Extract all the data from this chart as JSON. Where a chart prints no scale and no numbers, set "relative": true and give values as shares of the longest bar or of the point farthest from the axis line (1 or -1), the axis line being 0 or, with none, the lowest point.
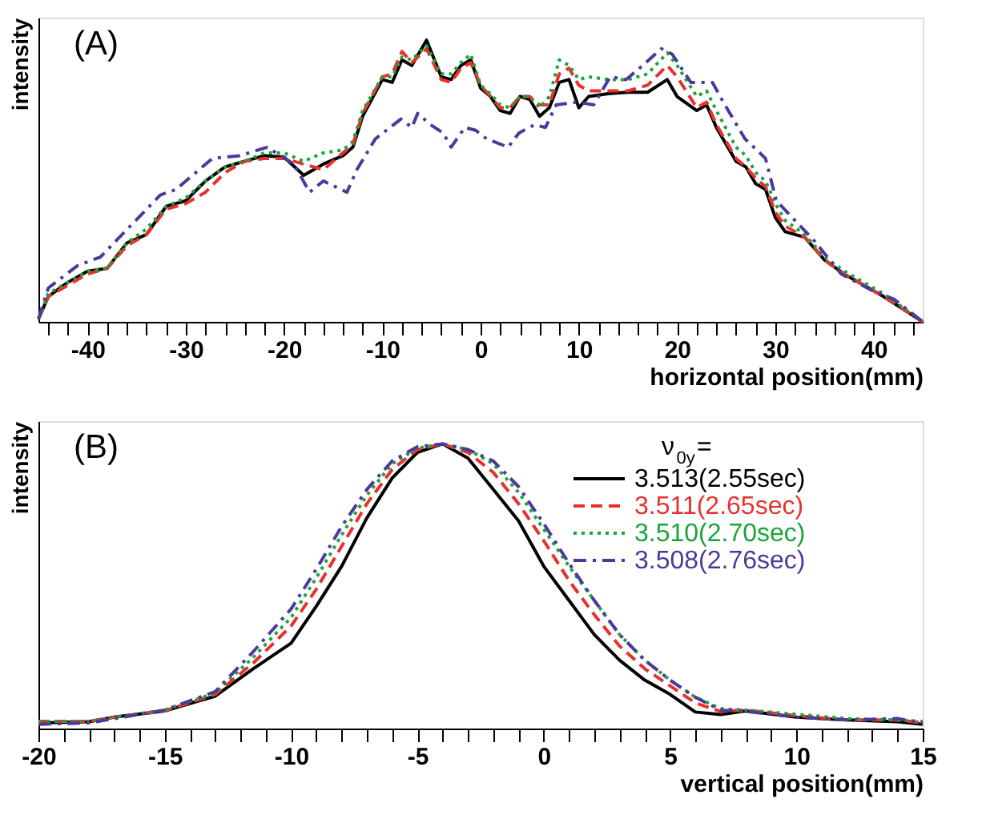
{
  "chart_data": [
    {
      "type": "line",
      "relative": true,
      "xlabel": "horizontal position(mm)",
      "ylabel": "intensity",
      "annotations": [
        "(A)"
      ],
      "xlim": [
        -45,
        45
      ],
      "xticks": [
        {
          "value": -44,
          "label": null
        },
        {
          "value": -42,
          "label": null
        },
        -40,
        {
          "value": -38,
          "label": null
        },
        {
          "value": -36,
          "label": null
        },
        {
          "value": -34,
          "label": null
        },
        {
          "value": -32,
          "label": null
        },
        -30,
        {
          "value": -28,
          "label": null
        },
        {
          "value": -26,
          "label": null
        },
        {
          "value": -24,
          "label": null
        },
        {
          "value": -22,
          "label": null
        },
        -20,
        {
          "value": -18,
          "label": null
        },
        {
          "value": -16,
          "label": null
        },
        {
          "value": -14,
          "label": null
        },
        {
          "value": -12,
          "label": null
        },
        -10,
        {
          "value": -8,
          "label": null
        },
        {
          "value": -6,
          "label": null
        },
        {
          "value": -4,
          "label": null
        },
        {
          "value": -2,
          "label": null
        },
        0,
        {
          "value": 2,
          "label": null
        },
        {
          "value": 4,
          "label": null
        },
        {
          "value": 6,
          "label": null
        },
        {
          "value": 8,
          "label": null
        },
        10,
        {
          "value": 12,
          "label": null
        },
        {
          "value": 14,
          "label": null
        },
        {
          "value": 16,
          "label": null
        },
        {
          "value": 18,
          "label": null
        },
        20,
        {
          "value": 22,
          "label": null
        },
        {
          "value": 24,
          "label": null
        },
        {
          "value": 26,
          "label": null
        },
        {
          "value": 28,
          "label": null
        },
        30,
        {
          "value": 32,
          "label": null
        },
        {
          "value": 34,
          "label": null
        },
        {
          "value": 36,
          "label": null
        },
        {
          "value": 38,
          "label": null
        },
        40,
        {
          "value": 42,
          "label": null
        },
        {
          "value": 44,
          "label": null
        }
      ],
      "x": [
        -45,
        -44,
        -42,
        -40,
        -38,
        -36,
        -34,
        -32,
        -30,
        -28,
        -26,
        -24,
        -22,
        -20,
        -18,
        -16,
        -14,
        -13,
        -12,
        -10,
        -9,
        -8,
        -7,
        -5.5,
        -4,
        -3,
        -2,
        -1,
        0,
        1,
        2,
        3,
        4,
        5,
        6,
        7,
        8,
        9,
        10,
        11,
        13,
        15,
        17,
        19,
        20,
        22,
        23,
        24,
        26,
        27,
        28,
        29,
        30,
        31,
        33,
        35,
        37,
        39,
        41,
        43,
        45
      ],
      "series": [
        {
          "color": "#000000",
          "line_style": "solid",
          "values": [
            0.01,
            0.09,
            0.14,
            0.18,
            0.19,
            0.28,
            0.31,
            0.41,
            0.43,
            0.5,
            0.55,
            0.57,
            0.59,
            0.585,
            0.52,
            0.56,
            0.59,
            0.62,
            0.73,
            0.86,
            0.85,
            0.93,
            0.91,
            1.0,
            0.87,
            0.86,
            0.91,
            0.93,
            0.83,
            0.8,
            0.75,
            0.74,
            0.8,
            0.79,
            0.73,
            0.76,
            0.85,
            0.86,
            0.76,
            0.8,
            0.81,
            0.815,
            0.815,
            0.86,
            0.8,
            0.75,
            0.77,
            0.69,
            0.57,
            0.55,
            0.49,
            0.47,
            0.37,
            0.32,
            0.3,
            0.22,
            0.17,
            0.13,
            0.09,
            0.045,
            0.0
          ]
        },
        {
          "color": "#e8312f",
          "line_style": "dashed",
          "values": [
            0.01,
            0.09,
            0.13,
            0.17,
            0.19,
            0.27,
            0.31,
            0.4,
            0.42,
            0.46,
            0.53,
            0.57,
            0.58,
            0.58,
            0.56,
            0.54,
            0.6,
            0.63,
            0.74,
            0.87,
            0.88,
            0.96,
            0.92,
            0.97,
            0.86,
            0.85,
            0.9,
            0.92,
            0.84,
            0.8,
            0.76,
            0.76,
            0.8,
            0.8,
            0.77,
            0.77,
            0.88,
            0.9,
            0.84,
            0.82,
            0.82,
            0.82,
            0.84,
            0.91,
            0.87,
            0.76,
            0.78,
            0.7,
            0.58,
            0.55,
            0.51,
            0.48,
            0.39,
            0.34,
            0.3,
            0.22,
            0.17,
            0.13,
            0.09,
            0.045,
            0.0
          ]
        },
        {
          "color": "#1aa53a",
          "line_style": "dotted",
          "values": [
            0.01,
            0.1,
            0.14,
            0.18,
            0.19,
            0.28,
            0.33,
            0.41,
            0.44,
            0.5,
            0.55,
            0.57,
            0.6,
            0.6,
            0.57,
            0.6,
            0.61,
            0.64,
            0.75,
            0.87,
            0.87,
            0.94,
            0.93,
            0.98,
            0.88,
            0.88,
            0.92,
            0.95,
            0.84,
            0.81,
            0.77,
            0.76,
            0.8,
            0.8,
            0.76,
            0.8,
            0.93,
            0.91,
            0.86,
            0.87,
            0.86,
            0.86,
            0.88,
            0.955,
            0.91,
            0.8,
            0.82,
            0.75,
            0.62,
            0.59,
            0.53,
            0.5,
            0.42,
            0.36,
            0.31,
            0.23,
            0.18,
            0.14,
            0.1,
            0.05,
            0.0
          ]
        },
        {
          "color": "#4b3a9b",
          "line_style": "dashdot",
          "x": [
            -45,
            -44,
            -41,
            -38.7,
            -36.2,
            -32.6,
            -31,
            -27.3,
            -24.5,
            -21.7,
            -19,
            -17.4,
            -16,
            -13.6,
            -12.6,
            -10.7,
            -8.1,
            -7,
            -6.4,
            -5.1,
            -3.8,
            -3,
            -1.6,
            -0.5,
            0.6,
            2.8,
            3.9,
            5.5,
            6.6,
            7.7,
            9.9,
            11.5,
            13.2,
            14.8,
            16.5,
            18.4,
            19.5,
            21.4,
            23.6,
            24.7,
            26.9,
            29,
            30.1,
            32,
            33.9,
            36.7,
            39.9,
            42.1,
            45
          ],
          "values": [
            0.01,
            0.12,
            0.2,
            0.23,
            0.32,
            0.45,
            0.47,
            0.58,
            0.59,
            0.62,
            0.56,
            0.46,
            0.5,
            0.46,
            0.54,
            0.65,
            0.72,
            0.69,
            0.74,
            0.7,
            0.67,
            0.62,
            0.69,
            0.68,
            0.65,
            0.62,
            0.67,
            0.7,
            0.69,
            0.77,
            0.78,
            0.77,
            0.87,
            0.86,
            0.91,
            0.97,
            0.95,
            0.85,
            0.85,
            0.78,
            0.65,
            0.58,
            0.43,
            0.36,
            0.29,
            0.17,
            0.11,
            0.08,
            0.0
          ]
        }
      ]
    },
    {
      "type": "line",
      "relative": true,
      "xlabel": "vertical position(mm)",
      "ylabel": "intensity",
      "annotations": [
        "(B)"
      ],
      "legend": "top right",
      "legend_title": "ν$_{0y}$=",
      "xlim": [
        -20,
        15
      ],
      "xticks": [
        -20,
        {
          "value": -19,
          "label": null
        },
        {
          "value": -18,
          "label": null
        },
        {
          "value": -17,
          "label": null
        },
        {
          "value": -16,
          "label": null
        },
        -15,
        {
          "value": -14,
          "label": null
        },
        {
          "value": -13,
          "label": null
        },
        {
          "value": -12,
          "label": null
        },
        {
          "value": -11,
          "label": null
        },
        -10,
        {
          "value": -9,
          "label": null
        },
        {
          "value": -8,
          "label": null
        },
        {
          "value": -7,
          "label": null
        },
        {
          "value": -6,
          "label": null
        },
        -5,
        {
          "value": -4,
          "label": null
        },
        {
          "value": -3,
          "label": null
        },
        {
          "value": -2,
          "label": null
        },
        {
          "value": -1,
          "label": null
        },
        0,
        {
          "value": 1,
          "label": null
        },
        {
          "value": 2,
          "label": null
        },
        {
          "value": 3,
          "label": null
        },
        {
          "value": 4,
          "label": null
        },
        5,
        {
          "value": 6,
          "label": null
        },
        {
          "value": 7,
          "label": null
        },
        {
          "value": 8,
          "label": null
        },
        {
          "value": 9,
          "label": null
        },
        10,
        {
          "value": 11,
          "label": null
        },
        {
          "value": 12,
          "label": null
        },
        {
          "value": 13,
          "label": null
        },
        {
          "value": 14,
          "label": null
        },
        15
      ],
      "x": [
        -20,
        -18,
        -17,
        -15,
        -13,
        -11.5,
        -10,
        -9,
        -8,
        -7,
        -6,
        -5,
        -4,
        -3,
        -2,
        -1,
        0,
        1,
        2,
        3,
        4,
        5,
        6,
        7,
        8,
        10,
        12,
        14,
        15
      ],
      "series": [
        {
          "name": "3.513(2.55sec)",
          "color": "#000000",
          "line_style": "solid",
          "values": [
            0.02,
            0.024,
            0.04,
            0.062,
            0.114,
            0.21,
            0.3,
            0.43,
            0.57,
            0.74,
            0.88,
            0.97,
            1.0,
            0.95,
            0.84,
            0.73,
            0.57,
            0.45,
            0.33,
            0.24,
            0.17,
            0.12,
            0.058,
            0.049,
            0.062,
            0.04,
            0.03,
            0.024,
            0.015
          ]
        },
        {
          "name": "3.511(2.65sec)",
          "color": "#e8312f",
          "line_style": "dashed",
          "values": [
            0.025,
            0.025,
            0.04,
            0.062,
            0.12,
            0.23,
            0.36,
            0.49,
            0.64,
            0.79,
            0.91,
            0.98,
            1.0,
            0.97,
            0.9,
            0.79,
            0.66,
            0.52,
            0.4,
            0.29,
            0.21,
            0.15,
            0.09,
            0.06,
            0.065,
            0.045,
            0.03,
            0.03,
            0.02
          ]
        },
        {
          "name": "3.510(2.70sec)",
          "color": "#1aa53a",
          "line_style": "dotted",
          "values": [
            0.025,
            0.025,
            0.04,
            0.065,
            0.125,
            0.25,
            0.39,
            0.53,
            0.68,
            0.82,
            0.93,
            0.985,
            1.0,
            0.98,
            0.93,
            0.83,
            0.7,
            0.57,
            0.45,
            0.33,
            0.24,
            0.17,
            0.11,
            0.07,
            0.065,
            0.05,
            0.035,
            0.03,
            0.025
          ]
        },
        {
          "name": "3.508(2.76sec)",
          "color": "#4b3a9b",
          "line_style": "dashdot",
          "values": [
            0.015,
            0.02,
            0.035,
            0.065,
            0.13,
            0.27,
            0.42,
            0.56,
            0.71,
            0.84,
            0.94,
            0.99,
            1.0,
            0.98,
            0.94,
            0.85,
            0.72,
            0.58,
            0.45,
            0.33,
            0.24,
            0.17,
            0.11,
            0.065,
            0.06,
            0.04,
            0.03,
            0.035,
            0.02
          ]
        }
      ]
    }
  ]
}
